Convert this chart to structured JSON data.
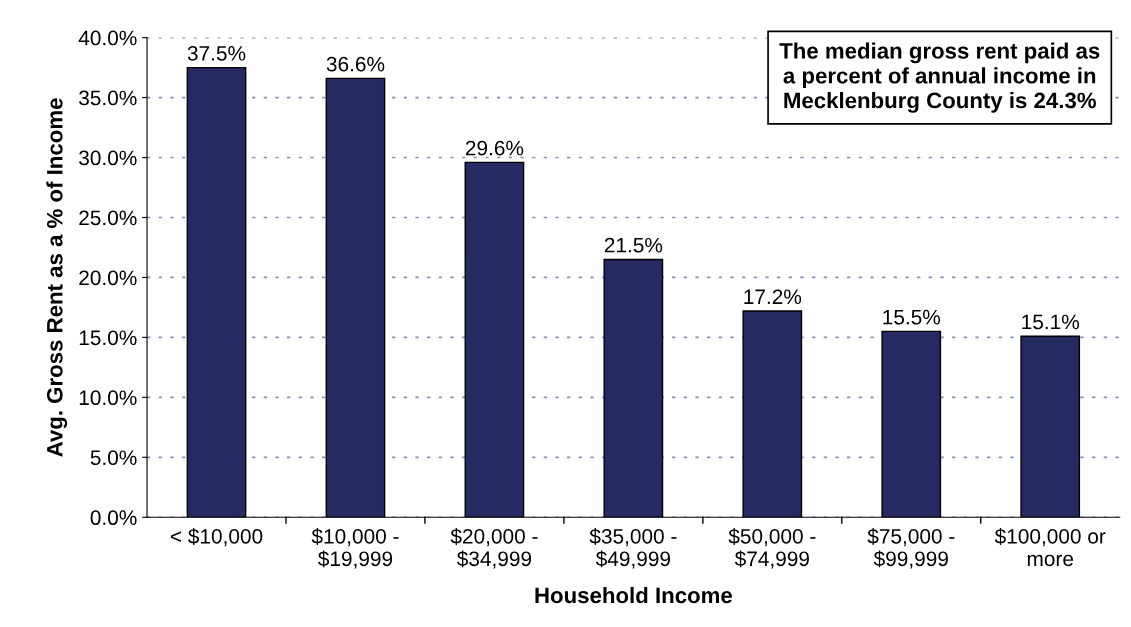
{
  "chart_data": {
    "type": "bar",
    "xlabel": "Household Income",
    "ylabel": "Avg. Gross Rent as a % of Income",
    "categories": [
      "< $10,000",
      "$10,000 -\n$19,999",
      "$20,000 -\n$34,999",
      "$35,000 -\n$49,999",
      "$50,000 -\n$74,999",
      "$75,000 -\n$99,999",
      "$100,000 or\nmore"
    ],
    "values": [
      37.5,
      36.6,
      29.6,
      21.5,
      17.2,
      15.5,
      15.1
    ],
    "value_labels": [
      "37.5%",
      "36.6%",
      "29.6%",
      "21.5%",
      "17.2%",
      "15.5%",
      "15.1%"
    ],
    "color": "#262a62",
    "ylim": [
      0,
      40
    ],
    "yticks": [
      {
        "value": 0,
        "label": "0.0%"
      },
      {
        "value": 5,
        "label": "5.0%"
      },
      {
        "value": 10,
        "label": "10.0%"
      },
      {
        "value": 15,
        "label": "15.0%"
      },
      {
        "value": 20,
        "label": "20.0%"
      },
      {
        "value": 25,
        "label": "25.0%"
      },
      {
        "value": 30,
        "label": "30.0%"
      },
      {
        "value": 35,
        "label": "35.0%"
      },
      {
        "value": 40,
        "label": "40.0%"
      }
    ],
    "grid": "y",
    "annotations": [
      "The median gross rent paid as\na percent of annual income in\nMecklenburg County is 24.3%"
    ]
  }
}
